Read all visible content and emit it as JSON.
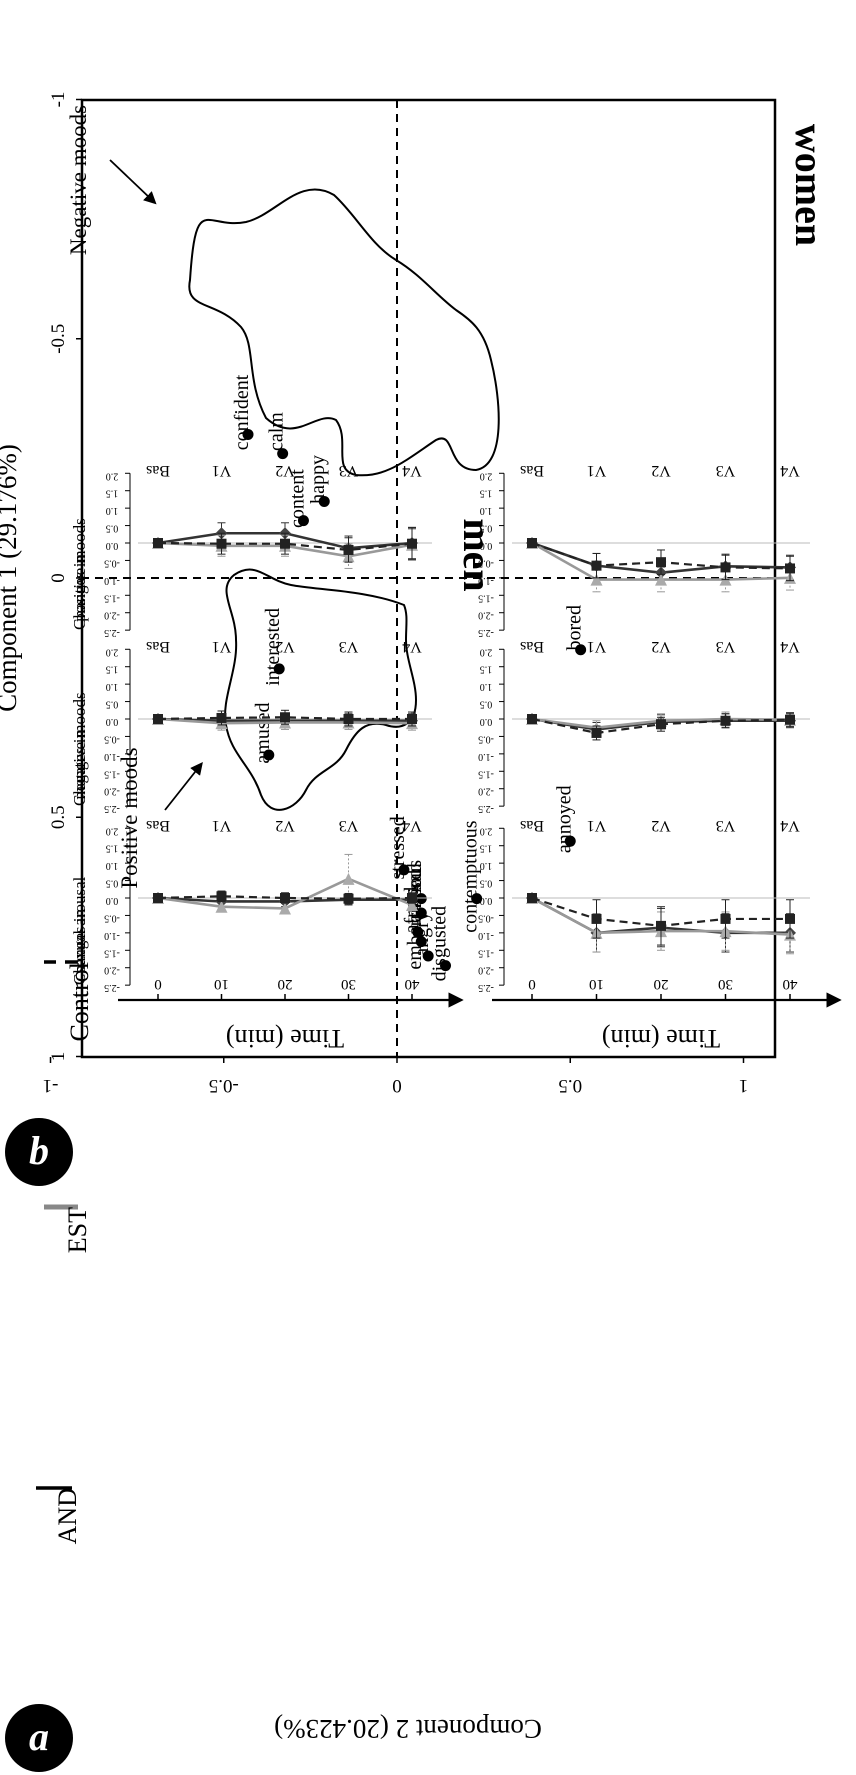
{
  "panel_a": {
    "label": "a",
    "xlabel": "Component 1 (29.176%)",
    "ylabel": "Component 2 (20.423%)",
    "group_labels": {
      "negative": "Negative moods",
      "positive": "Positive moods"
    }
  },
  "panel_b": {
    "label": "b",
    "col_titles": [
      "men",
      "women"
    ],
    "row_labels": [
      [
        "Changes in",
        "positive moods"
      ],
      [
        "Changes in",
        "negative moods"
      ],
      [
        "Changes in",
        "sexual arousal"
      ]
    ],
    "xlabel": "Time (min)",
    "visit_labels": [
      "Bas",
      "V1",
      "V2",
      "V3",
      "V4"
    ]
  },
  "legend": {
    "items": [
      "AND",
      "EST",
      "Control"
    ]
  },
  "chart_data": [
    {
      "type": "scatter",
      "xlabel": "Component 1 (29.176%)",
      "ylabel": "Component 2 (20.423%)",
      "xlim": [
        -1,
        1
      ],
      "ylim": [
        -1,
        1
      ],
      "xticks": [
        "-1",
        "-0.5",
        "0",
        "0.5",
        "1"
      ],
      "yticks": [
        "-1",
        "-0.5",
        "0",
        "0.5",
        "1"
      ],
      "reference_lines": [
        "x = 0 (dashed)",
        "y = 0 (dashed)"
      ],
      "points": [
        {
          "label": "bored",
          "x": 0.15,
          "y": 0.53
        },
        {
          "label": "annoyed",
          "x": 0.55,
          "y": 0.5
        },
        {
          "label": "contemptuous",
          "x": 0.67,
          "y": 0.23
        },
        {
          "label": "disgusted",
          "x": 0.81,
          "y": 0.14
        },
        {
          "label": "angry",
          "x": 0.79,
          "y": 0.09
        },
        {
          "label": "embarrassed",
          "x": 0.76,
          "y": 0.07
        },
        {
          "label": "afraid",
          "x": 0.74,
          "y": 0.06
        },
        {
          "label": "anxious",
          "x": 0.7,
          "y": 0.07
        },
        {
          "label": "sad",
          "x": 0.67,
          "y": 0.07
        },
        {
          "label": "stressed",
          "x": 0.61,
          "y": 0.02
        },
        {
          "label": "amused",
          "x": 0.37,
          "y": -0.37
        },
        {
          "label": "interested",
          "x": 0.19,
          "y": -0.34
        },
        {
          "label": "calm",
          "x": -0.26,
          "y": -0.33
        },
        {
          "label": "confident",
          "x": -0.3,
          "y": -0.43
        },
        {
          "label": "content",
          "x": -0.12,
          "y": -0.27
        },
        {
          "label": "happy",
          "x": -0.16,
          "y": -0.21
        }
      ]
    },
    {
      "type": "line",
      "panels": [
        {
          "row": "Changes in positive moods",
          "col": "men",
          "x": [
            0,
            10,
            20,
            30,
            40
          ],
          "ylim": [
            -2.5,
            2.0
          ],
          "series": [
            {
              "name": "AND",
              "values": [
                0,
                0.28,
                0.28,
                -0.15,
                0
              ],
              "error": [
                0.08,
                0.3,
                0.3,
                0.35,
                0.45
              ]
            },
            {
              "name": "EST",
              "values": [
                0,
                -0.08,
                -0.08,
                -0.38,
                -0.05
              ],
              "error": [
                0.08,
                0.3,
                0.3,
                0.35,
                0.45
              ]
            },
            {
              "name": "Control",
              "values": [
                0,
                -0.02,
                -0.02,
                -0.2,
                -0.02
              ],
              "error": [
                0.08,
                0.3,
                0.3,
                0.35,
                0.45
              ]
            }
          ]
        },
        {
          "row": "Changes in positive moods",
          "col": "women",
          "x": [
            0,
            10,
            20,
            30,
            40
          ],
          "ylim": [
            -2.5,
            2.0
          ],
          "series": [
            {
              "name": "AND",
              "values": [
                0,
                -0.65,
                -0.85,
                -0.67,
                -0.7
              ],
              "error": [
                0.08,
                0.35,
                0.35,
                0.35,
                0.35
              ]
            },
            {
              "name": "EST",
              "values": [
                0,
                -1.05,
                -1.05,
                -1.05,
                -1.0
              ],
              "error": [
                0.08,
                0.35,
                0.35,
                0.35,
                0.35
              ]
            },
            {
              "name": "Control",
              "values": [
                0,
                -0.65,
                -0.55,
                -0.7,
                -0.73
              ],
              "error": [
                0.08,
                0.35,
                0.35,
                0.35,
                0.35
              ]
            }
          ]
        },
        {
          "row": "Changes in negative moods",
          "col": "men",
          "x": [
            0,
            10,
            20,
            30,
            40
          ],
          "ylim": [
            -2.5,
            2.0
          ],
          "series": [
            {
              "name": "AND",
              "values": [
                0,
                -0.05,
                -0.05,
                -0.05,
                -0.05
              ],
              "error": [
                0.06,
                0.2,
                0.2,
                0.2,
                0.2
              ]
            },
            {
              "name": "EST",
              "values": [
                0,
                -0.12,
                -0.1,
                -0.1,
                -0.12
              ],
              "error": [
                0.06,
                0.2,
                0.2,
                0.2,
                0.2
              ]
            },
            {
              "name": "Control",
              "values": [
                0,
                0.03,
                0.05,
                0,
                0
              ],
              "error": [
                0.06,
                0.2,
                0.2,
                0.2,
                0.2
              ]
            }
          ]
        },
        {
          "row": "Changes in negative moods",
          "col": "women",
          "x": [
            0,
            10,
            20,
            30,
            40
          ],
          "ylim": [
            -2.5,
            2.0
          ],
          "series": [
            {
              "name": "AND",
              "values": [
                0,
                -0.3,
                -0.08,
                -0.05,
                -0.05
              ],
              "error": [
                0.06,
                0.2,
                0.2,
                0.2,
                0.2
              ]
            },
            {
              "name": "EST",
              "values": [
                0,
                -0.25,
                -0.05,
                0,
                -0.02
              ],
              "error": [
                0.06,
                0.2,
                0.2,
                0.2,
                0.2
              ]
            },
            {
              "name": "Control",
              "values": [
                0,
                -0.4,
                -0.15,
                -0.05,
                -0.02
              ],
              "error": [
                0.06,
                0.2,
                0.2,
                0.2,
                0.2
              ]
            }
          ]
        },
        {
          "row": "Changes in sexual arousal",
          "col": "men",
          "x": [
            0,
            10,
            20,
            30,
            40
          ],
          "ylim": [
            -2.5,
            2.0
          ],
          "series": [
            {
              "name": "AND",
              "values": [
                0,
                -0.1,
                -0.1,
                -0.05,
                -0.05
              ],
              "error": [
                0.06,
                0.15,
                0.15,
                0.15,
                0.15
              ]
            },
            {
              "name": "EST",
              "values": [
                0,
                -0.25,
                -0.3,
                0.55,
                -0.2
              ],
              "error": [
                0.06,
                0.15,
                0.15,
                0.7,
                0.15
              ]
            },
            {
              "name": "Control",
              "values": [
                0,
                0.05,
                0,
                -0.02,
                0
              ],
              "error": [
                0.06,
                0.15,
                0.15,
                0.15,
                0.15
              ]
            }
          ]
        },
        {
          "row": "Changes in sexual arousal",
          "col": "women",
          "x": [
            0,
            10,
            20,
            30,
            40
          ],
          "ylim": [
            -2.5,
            2.0
          ],
          "series": [
            {
              "name": "AND",
              "values": [
                0,
                -1.0,
                -0.85,
                -1.0,
                -1.0
              ],
              "error": [
                0.06,
                0.55,
                0.55,
                0.55,
                0.55
              ]
            },
            {
              "name": "EST",
              "values": [
                0,
                -1.0,
                -0.95,
                -0.95,
                -1.05
              ],
              "error": [
                0.06,
                0.55,
                0.55,
                0.55,
                0.55
              ]
            },
            {
              "name": "Control",
              "values": [
                0,
                -0.6,
                -0.8,
                -0.6,
                -0.6
              ],
              "error": [
                0.06,
                0.55,
                0.55,
                0.55,
                0.55
              ]
            }
          ]
        }
      ]
    }
  ]
}
